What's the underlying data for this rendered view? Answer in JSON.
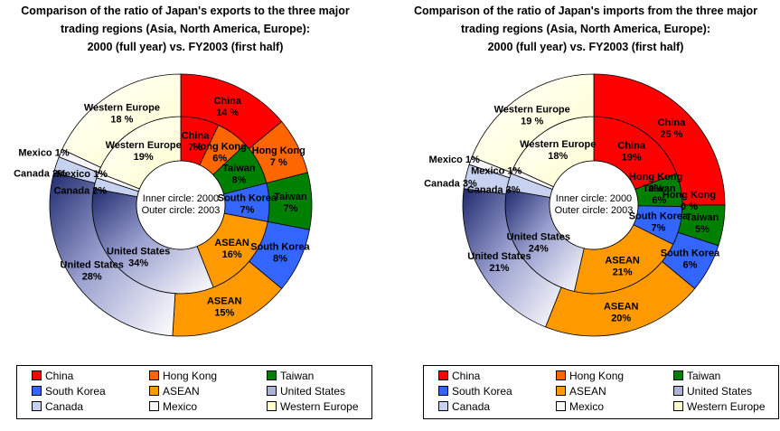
{
  "charts": [
    {
      "title_lines": [
        "Comparison of the ratio of Japan's exports to the three major",
        "trading regions (Asia, North America, Europe):",
        "2000 (full year) vs. FY2003 (first half)"
      ],
      "center_lines": [
        "Inner circle: 2000",
        "Outer circle: 2003"
      ]
    },
    {
      "title_lines": [
        "Comparison of the ratio of Japan's imports from the three major",
        "trading regions (Asia, North America, Europe):",
        "2000 (full year) vs. FY2003 (first half)"
      ],
      "center_lines": [
        "Inner circle: 2000",
        "Outer circle: 2003"
      ]
    }
  ],
  "legend": [
    {
      "label": "China",
      "color": "#ff0000"
    },
    {
      "label": "Hong Kong",
      "color": "#ff6600"
    },
    {
      "label": "Taiwan",
      "color": "#008000"
    },
    {
      "label": "South Korea",
      "color": "#3366ff"
    },
    {
      "label": "ASEAN",
      "color": "#ff9900"
    },
    {
      "label": "United States",
      "color": "#aeb2d6"
    },
    {
      "label": "Canada",
      "color": "#c6d2f0"
    },
    {
      "label": "Mexico",
      "color": "#f6f6fb"
    },
    {
      "label": "Western Europe",
      "color": "#ffffcc"
    }
  ],
  "chart_data": [
    {
      "type": "donut",
      "title": "Comparison of the ratio of Japan's exports to the three major trading regions (Asia, North America, Europe): 2000 (full year) vs. FY2003 (first half)",
      "categories": [
        "China",
        "Hong Kong",
        "Taiwan",
        "South Korea",
        "ASEAN",
        "United States",
        "Canada",
        "Mexico",
        "Western Europe"
      ],
      "series": [
        {
          "name": "Inner circle: 2000",
          "values": [
            7,
            6,
            8,
            7,
            16,
            34,
            2,
            1,
            19
          ],
          "labels": [
            "7%",
            "6%",
            "8%",
            "7%",
            "16%",
            "34%",
            "2%",
            "1%",
            "19%"
          ]
        },
        {
          "name": "Outer circle: 2003",
          "values": [
            14,
            7,
            7,
            8,
            15,
            28,
            2,
            1,
            18
          ],
          "labels": [
            "14 %",
            "7 %",
            "7%",
            "8%",
            "15%",
            "28%",
            "2%",
            "1%",
            "18 %"
          ]
        }
      ]
    },
    {
      "type": "donut",
      "title": "Comparison of the ratio of Japan's imports from the three major trading regions (Asia, North America, Europe): 2000 (full year) vs. FY2003 (first half)",
      "categories": [
        "China",
        "Hong Kong",
        "Taiwan",
        "South Korea",
        "ASEAN",
        "United States",
        "Canada",
        "Mexico",
        "Western Europe"
      ],
      "series": [
        {
          "name": "Inner circle: 2000",
          "values": [
            19,
            0,
            6,
            7,
            21,
            24,
            3,
            1,
            18
          ],
          "labels": [
            "19%",
            "0%",
            "6%",
            "7%",
            "21%",
            "24%",
            "3%",
            "1%",
            "18%"
          ]
        },
        {
          "name": "Outer circle: 2003",
          "values": [
            25,
            0,
            5,
            6,
            20,
            21,
            3,
            1,
            19
          ],
          "labels": [
            "25 %",
            "0 %",
            "5%",
            "6%",
            "20%",
            "21%",
            "3%",
            "1%",
            "19 %"
          ]
        }
      ]
    }
  ]
}
